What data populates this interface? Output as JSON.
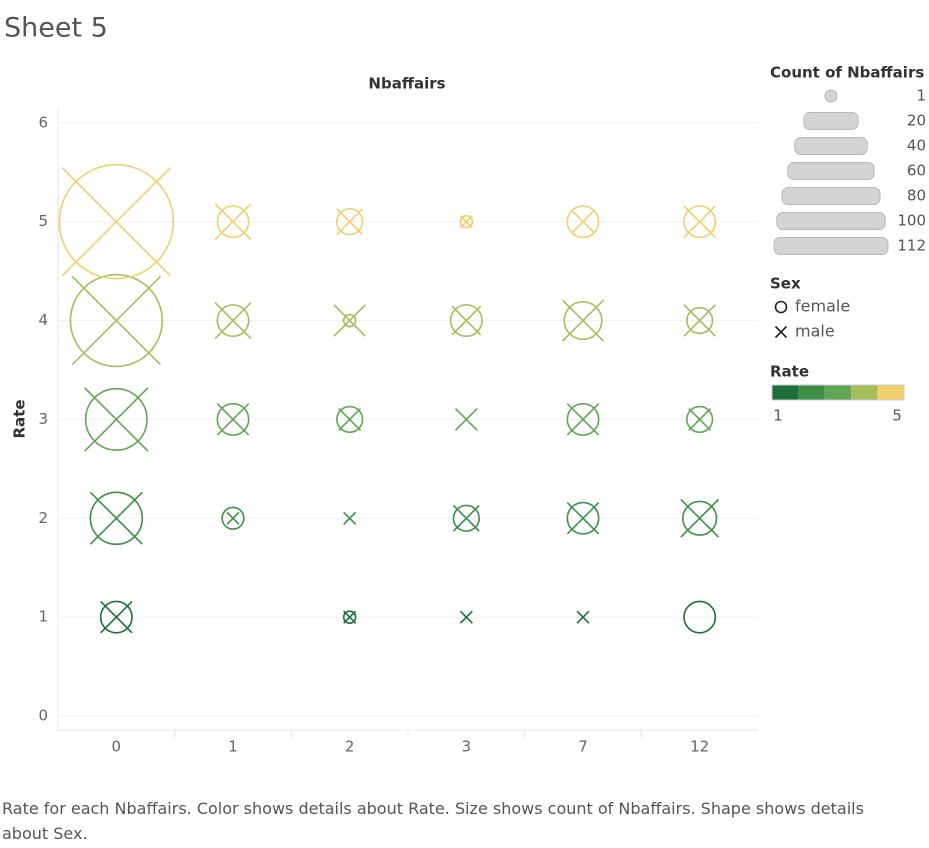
{
  "title": "Sheet 5",
  "caption": "Rate for each Nbaffairs.  Color shows details about Rate.  Size shows count of Nbaffairs.  Shape shows details about Sex.",
  "chart_data": {
    "type": "scatter",
    "column_title": "Nbaffairs",
    "y_label": "Rate",
    "categories": [
      "0",
      "1",
      "2",
      "3",
      "7",
      "12"
    ],
    "rates": [
      1,
      2,
      3,
      4,
      5
    ],
    "rate_colors": [
      "#1e6e3a",
      "#3d8f4a",
      "#62a555",
      "#a6bd5c",
      "#f0cf6c"
    ],
    "ylim": [
      0,
      6.15
    ],
    "yticks": [
      0,
      1,
      2,
      3,
      4,
      5,
      6
    ],
    "grid": true,
    "series": [
      {
        "name": "female",
        "shape": "circle",
        "values": [
          [
            5,
            null,
            1,
            null,
            null,
            5
          ],
          [
            18,
            2,
            null,
            3,
            5,
            6
          ],
          [
            27,
            5,
            3,
            null,
            5,
            3
          ],
          [
            69,
            5,
            1,
            5,
            8,
            3
          ],
          [
            112,
            5,
            3,
            1,
            5,
            5
          ]
        ]
      },
      {
        "name": "male",
        "shape": "x",
        "values": [
          [
            5,
            null,
            1,
            1,
            1,
            null
          ],
          [
            18,
            1,
            1,
            3,
            5,
            8
          ],
          [
            29,
            5,
            2,
            2,
            5,
            2
          ],
          [
            63,
            7,
            5,
            4,
            10,
            5
          ],
          [
            100,
            7,
            3,
            1,
            2,
            5
          ]
        ]
      }
    ],
    "size_legend": {
      "title": "Count of Nbaffairs",
      "values": [
        1,
        20,
        40,
        60,
        80,
        100,
        112
      ]
    },
    "shape_legend": {
      "title": "Sex"
    },
    "color_legend": {
      "title": "Rate",
      "ticks": [
        1,
        5
      ]
    }
  }
}
